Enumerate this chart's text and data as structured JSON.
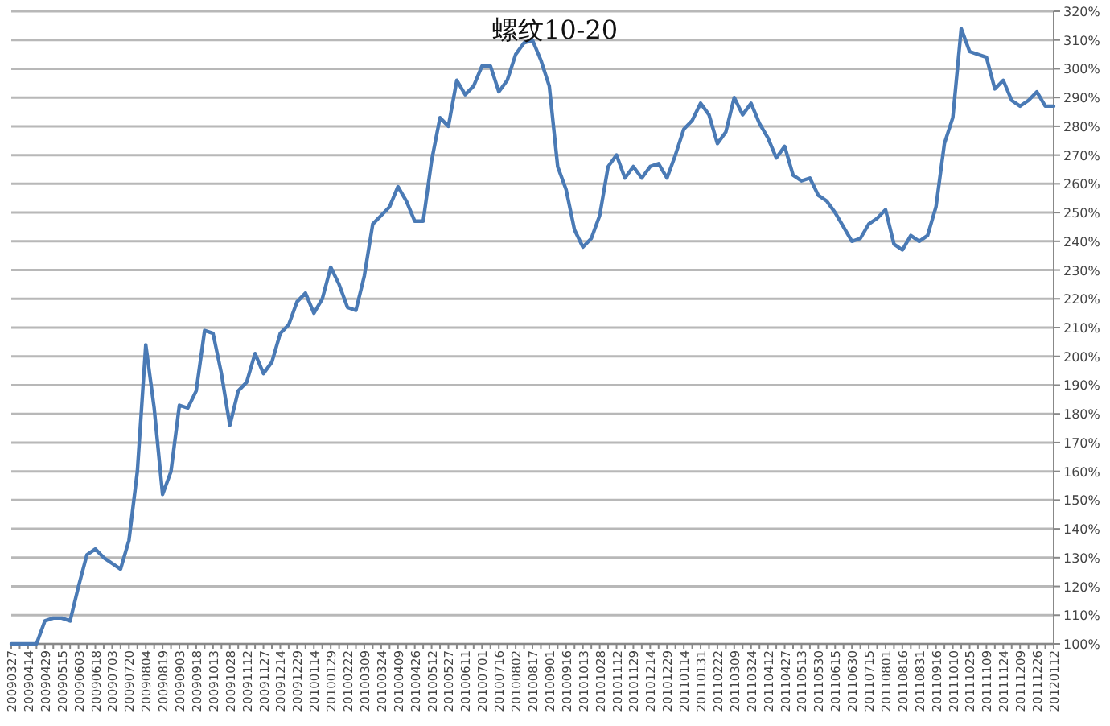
{
  "chart_data": {
    "type": "line",
    "title": "螺纹10-20",
    "categories": [
      "20090327",
      null,
      "20090414",
      null,
      "20090429",
      null,
      "20090515",
      null,
      "20090603",
      null,
      "20090618",
      null,
      "20090703",
      null,
      "20090720",
      null,
      "20090804",
      null,
      "20090819",
      null,
      "20090903",
      null,
      "20090918",
      null,
      "20091013",
      null,
      "20091028",
      null,
      "20091112",
      null,
      "20091127",
      null,
      "20091214",
      null,
      "20091229",
      null,
      "20100114",
      null,
      "20100129",
      null,
      "20100222",
      null,
      "20100309",
      null,
      "20100324",
      null,
      "20100409",
      null,
      "20100426",
      null,
      "20100512",
      null,
      "20100527",
      null,
      "20100611",
      null,
      "20100701",
      null,
      "20100716",
      null,
      "20100802",
      null,
      "20100817",
      null,
      "20100901",
      null,
      "20100916",
      null,
      "20101013",
      null,
      "20101028",
      null,
      "20101112",
      null,
      "20101129",
      null,
      "20101214",
      null,
      "20101229",
      null,
      "20110114",
      null,
      "20110131",
      null,
      "20110222",
      null,
      "20110309",
      null,
      "20110324",
      null,
      "20110412",
      null,
      "20110427",
      null,
      "20110513",
      null,
      "20110530",
      null,
      "20110615",
      null,
      "20110630",
      null,
      "20110715",
      null,
      "20110801",
      null,
      "20110816",
      null,
      "20110831",
      null,
      "20110916",
      null,
      "20111010",
      null,
      "20111025",
      null,
      "20111109",
      null,
      "20111124",
      null,
      "20111209",
      null,
      "20111226",
      null,
      "20120112"
    ],
    "series": [
      {
        "color": "#4a7ab5",
        "values": [
          100,
          100,
          100,
          100,
          108,
          109,
          109,
          108,
          120,
          131,
          133,
          130,
          128,
          126,
          136,
          160,
          204,
          182,
          152,
          160,
          183,
          182,
          188,
          209,
          208,
          194,
          176,
          188,
          191,
          201,
          194,
          198,
          208,
          211,
          219,
          222,
          215,
          220,
          231,
          225,
          217,
          216,
          228,
          246,
          249,
          252,
          259,
          254,
          247,
          247,
          268,
          283,
          280,
          296,
          291,
          294,
          301,
          301,
          292,
          296,
          305,
          309,
          310,
          303,
          294,
          266,
          258,
          244,
          238,
          241,
          249,
          266,
          270,
          262,
          266,
          262,
          266,
          267,
          262,
          270,
          279,
          282,
          288,
          284,
          274,
          278,
          290,
          284,
          288,
          281,
          276,
          269,
          273,
          263,
          261,
          262,
          256,
          254,
          250,
          245,
          240,
          241,
          246,
          248,
          251,
          239,
          237,
          242,
          240,
          242,
          252,
          274,
          283,
          314,
          306,
          305,
          304,
          293,
          296,
          289,
          287,
          289,
          292,
          287,
          287
        ]
      }
    ],
    "ylim": [
      100,
      320
    ],
    "yticks": [
      {
        "value": 100,
        "label": "100%"
      },
      {
        "value": 110,
        "label": "110%"
      },
      {
        "value": 120,
        "label": "120%"
      },
      {
        "value": 130,
        "label": "130%"
      },
      {
        "value": 140,
        "label": "140%"
      },
      {
        "value": 150,
        "label": "150%"
      },
      {
        "value": 160,
        "label": "160%"
      },
      {
        "value": 170,
        "label": "170%"
      },
      {
        "value": 180,
        "label": "180%"
      },
      {
        "value": 190,
        "label": "190%"
      },
      {
        "value": 200,
        "label": "200%"
      },
      {
        "value": 210,
        "label": "210%"
      },
      {
        "value": 220,
        "label": "220%"
      },
      {
        "value": 230,
        "label": "230%"
      },
      {
        "value": 240,
        "label": "240%"
      },
      {
        "value": 250,
        "label": "250%"
      },
      {
        "value": 260,
        "label": "260%"
      },
      {
        "value": 270,
        "label": "270%"
      },
      {
        "value": 280,
        "label": "280%"
      },
      {
        "value": 290,
        "label": "290%"
      },
      {
        "value": 300,
        "label": "300%"
      },
      {
        "value": 310,
        "label": "310%"
      },
      {
        "value": 320,
        "label": "320%"
      }
    ],
    "grid": "y",
    "marker": "none",
    "line_style": "solid"
  }
}
